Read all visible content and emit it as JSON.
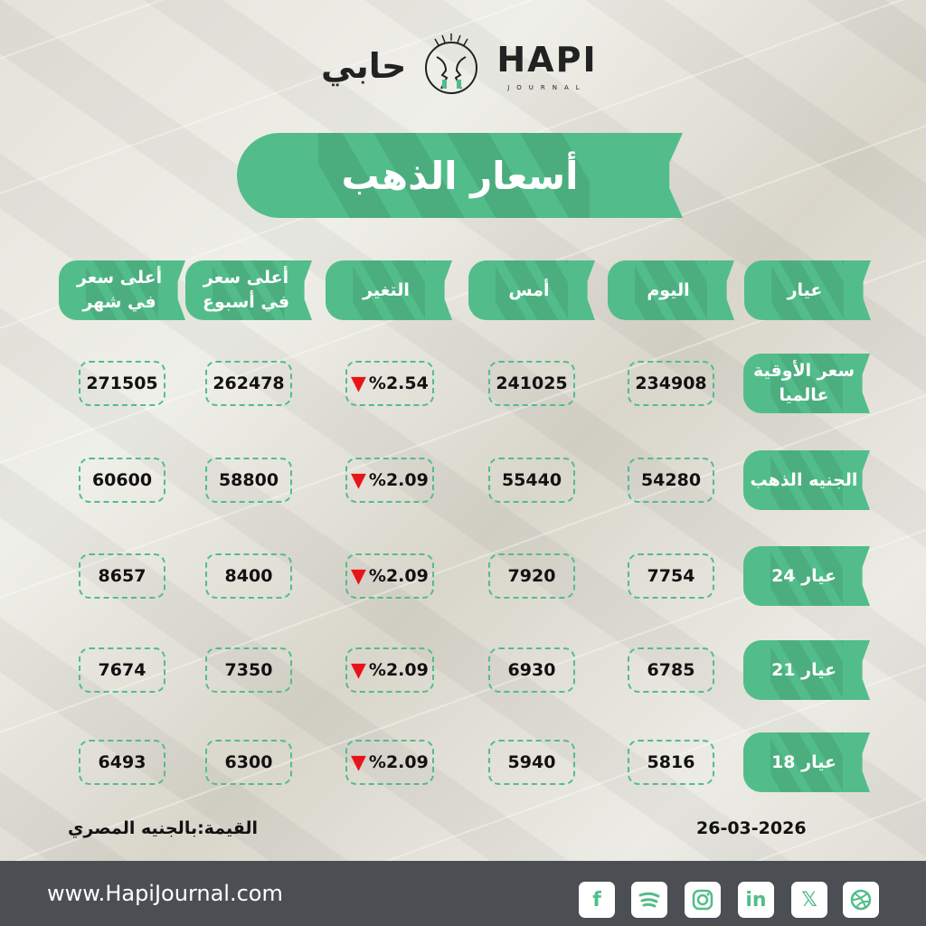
{
  "logo": {
    "arabic": "حابي",
    "english": "HAPI",
    "sub": "JOURNAL"
  },
  "title": "أسعار الذهب",
  "headers": [
    "عيار",
    "اليوم",
    "أمس",
    "التغير",
    "أعلى سعر في أسبوع",
    "أعلى سعر في شهر"
  ],
  "rows": [
    {
      "label": "سعر الأوقية عالميا",
      "today": "234908",
      "yesterday": "241025",
      "change": "%2.54",
      "week_high": "262478",
      "month_high": "271505"
    },
    {
      "label": "الجنيه الذهب",
      "today": "54280",
      "yesterday": "55440",
      "change": "%2.09",
      "week_high": "58800",
      "month_high": "60600"
    },
    {
      "label": "عيار 24",
      "today": "7754",
      "yesterday": "7920",
      "change": "%2.09",
      "week_high": "8400",
      "month_high": "8657"
    },
    {
      "label": "عيار 21",
      "today": "6785",
      "yesterday": "6930",
      "change": "%2.09",
      "week_high": "7350",
      "month_high": "7674"
    },
    {
      "label": "عيار 18",
      "today": "5816",
      "yesterday": "5940",
      "change": "%2.09",
      "week_high": "6300",
      "month_high": "6493"
    }
  ],
  "currency_note": "القيمة:بالجنيه المصري",
  "date": "26-03-2026",
  "footer": {
    "url": "www.HapiJournal.com",
    "social": [
      "facebook",
      "spotify",
      "instagram",
      "linkedin",
      "x",
      "dribbble"
    ]
  },
  "colors": {
    "accent": "#52bd8a",
    "down": "#e8141a",
    "footer": "#4b4f54"
  }
}
